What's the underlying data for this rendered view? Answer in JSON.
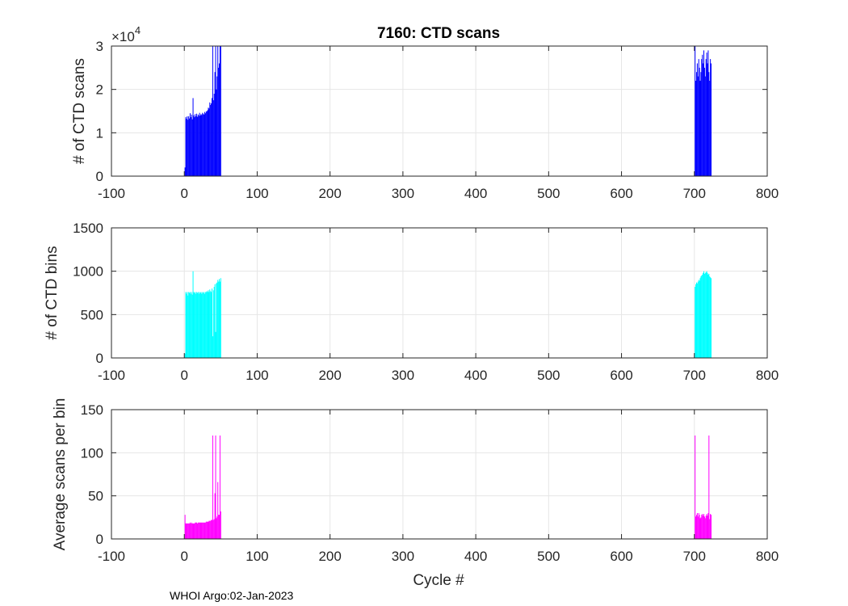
{
  "title": "7160: CTD scans",
  "footer": "WHOI Argo:02-Jan-2023",
  "chart_data": [
    {
      "type": "bar",
      "ylabel": "# of CTD scans",
      "xlabel": "",
      "xlim": [
        -100,
        800
      ],
      "ylim": [
        0,
        30000
      ],
      "x_ticks": [
        "-100",
        "0",
        "100",
        "200",
        "300",
        "400",
        "500",
        "600",
        "700",
        "800"
      ],
      "y_ticks": [
        "0",
        "1",
        "2",
        "3"
      ],
      "y_multiplier": "×10",
      "y_multiplier_exp": "4",
      "grid": true,
      "color": "#0000ff",
      "x": [
        1,
        2,
        3,
        4,
        5,
        6,
        7,
        8,
        9,
        10,
        11,
        12,
        13,
        14,
        15,
        16,
        17,
        18,
        19,
        20,
        21,
        22,
        23,
        24,
        25,
        26,
        27,
        28,
        29,
        30,
        31,
        32,
        33,
        34,
        35,
        36,
        37,
        38,
        39,
        40,
        41,
        42,
        43,
        44,
        45,
        46,
        47,
        48,
        49,
        50,
        701,
        702,
        703,
        704,
        705,
        706,
        707,
        708,
        709,
        710,
        711,
        712,
        713,
        714,
        715,
        716,
        717,
        718,
        719,
        720,
        721,
        722,
        723
      ],
      "values": [
        2000,
        13600,
        13200,
        13800,
        13000,
        13800,
        13300,
        14500,
        13600,
        14200,
        13100,
        18000,
        14000,
        13600,
        14300,
        13800,
        14400,
        13700,
        14200,
        13900,
        14600,
        14000,
        14300,
        14100,
        14600,
        14400,
        14200,
        14800,
        14500,
        14900,
        15000,
        15200,
        15800,
        15600,
        17000,
        16400,
        16800,
        18000,
        30000,
        17500,
        19000,
        24000,
        30000,
        20000,
        23000,
        30000,
        25000,
        26000,
        30000,
        30000,
        30000,
        22000,
        24000,
        26000,
        23000,
        27000,
        25000,
        22000,
        24000,
        27000,
        28000,
        26000,
        29000,
        25000,
        23000,
        27000,
        28500,
        26000,
        29000,
        24000,
        22000,
        27000,
        26000
      ]
    },
    {
      "type": "bar",
      "ylabel": "# of CTD bins",
      "xlabel": "",
      "xlim": [
        -100,
        800
      ],
      "ylim": [
        0,
        1500
      ],
      "x_ticks": [
        "-100",
        "0",
        "100",
        "200",
        "300",
        "400",
        "500",
        "600",
        "700",
        "800"
      ],
      "y_ticks": [
        "0",
        "500",
        "1000",
        "1500"
      ],
      "grid": true,
      "color": "#00ffff",
      "x": [
        1,
        2,
        3,
        4,
        5,
        6,
        7,
        8,
        9,
        10,
        11,
        12,
        13,
        14,
        15,
        16,
        17,
        18,
        19,
        20,
        21,
        22,
        23,
        24,
        25,
        26,
        27,
        28,
        29,
        30,
        31,
        32,
        33,
        34,
        35,
        36,
        37,
        38,
        39,
        40,
        41,
        42,
        43,
        44,
        45,
        46,
        47,
        48,
        49,
        50,
        701,
        702,
        703,
        704,
        705,
        706,
        707,
        708,
        709,
        710,
        711,
        712,
        713,
        714,
        715,
        716,
        717,
        718,
        719,
        720,
        721,
        722,
        723
      ],
      "values": [
        50,
        760,
        740,
        760,
        720,
        760,
        750,
        760,
        740,
        760,
        730,
        1000,
        760,
        750,
        760,
        740,
        760,
        750,
        760,
        740,
        760,
        750,
        760,
        740,
        760,
        750,
        760,
        740,
        760,
        760,
        770,
        760,
        780,
        760,
        790,
        770,
        760,
        800,
        250,
        780,
        820,
        850,
        300,
        860,
        870,
        900,
        880,
        910,
        880,
        920,
        820,
        850,
        870,
        860,
        880,
        900,
        890,
        920,
        940,
        950,
        960,
        980,
        1000,
        970,
        980,
        990,
        1000,
        980,
        960,
        970,
        940,
        930,
        920
      ]
    },
    {
      "type": "bar",
      "ylabel": "Average scans per bin",
      "xlabel": "Cycle #",
      "xlim": [
        -100,
        800
      ],
      "ylim": [
        0,
        150
      ],
      "x_ticks": [
        "-100",
        "0",
        "100",
        "200",
        "300",
        "400",
        "500",
        "600",
        "700",
        "800"
      ],
      "y_ticks": [
        "0",
        "50",
        "100",
        "150"
      ],
      "grid": true,
      "color": "#ff00ff",
      "x": [
        1,
        2,
        3,
        4,
        5,
        6,
        7,
        8,
        9,
        10,
        11,
        12,
        13,
        14,
        15,
        16,
        17,
        18,
        19,
        20,
        21,
        22,
        23,
        24,
        25,
        26,
        27,
        28,
        29,
        30,
        31,
        32,
        33,
        34,
        35,
        36,
        37,
        38,
        39,
        40,
        41,
        42,
        43,
        44,
        45,
        46,
        47,
        48,
        49,
        50,
        701,
        702,
        703,
        704,
        705,
        706,
        707,
        708,
        709,
        710,
        711,
        712,
        713,
        714,
        715,
        716,
        717,
        718,
        719,
        720,
        721,
        722,
        723
      ],
      "values": [
        28,
        18,
        18,
        18,
        18,
        18,
        18,
        19,
        18,
        19,
        18,
        18,
        18,
        18,
        19,
        19,
        19,
        18,
        19,
        19,
        19,
        19,
        19,
        19,
        19,
        19,
        19,
        19,
        19,
        20,
        20,
        20,
        20,
        21,
        21,
        21,
        22,
        22,
        120,
        22,
        23,
        53,
        120,
        24,
        26,
        66,
        28,
        28,
        120,
        32,
        120,
        26,
        28,
        30,
        26,
        30,
        28,
        24,
        25,
        28,
        29,
        27,
        29,
        26,
        24,
        27,
        29,
        27,
        30,
        120,
        23,
        29,
        28
      ]
    }
  ]
}
